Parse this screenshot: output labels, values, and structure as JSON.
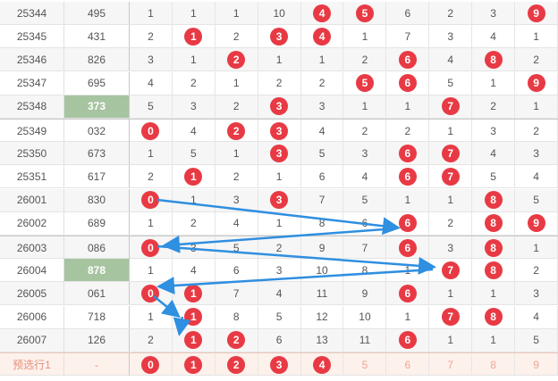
{
  "colors": {
    "ball": "#e83a44",
    "highlight_sum": "#a7c4a1",
    "arrow": "#2f8fe0",
    "pre_row_bg": "#fdf1ec",
    "pre_text": "#f0a58f"
  },
  "rows": [
    {
      "issue": "25344",
      "sum": "495",
      "cells": [
        "1",
        "1",
        "1",
        "10",
        "4",
        "5",
        "6",
        "2",
        "3",
        "9"
      ],
      "balls": [
        4,
        5,
        9
      ]
    },
    {
      "issue": "25345",
      "sum": "431",
      "cells": [
        "2",
        "1",
        "2",
        "3",
        "4",
        "1",
        "7",
        "3",
        "4",
        "1"
      ],
      "balls": [
        1,
        3,
        4
      ]
    },
    {
      "issue": "25346",
      "sum": "826",
      "cells": [
        "3",
        "1",
        "2",
        "1",
        "1",
        "2",
        "6",
        "4",
        "8",
        "2"
      ],
      "balls": [
        2,
        6,
        8
      ]
    },
    {
      "issue": "25347",
      "sum": "695",
      "cells": [
        "4",
        "2",
        "1",
        "2",
        "2",
        "5",
        "6",
        "5",
        "1",
        "9"
      ],
      "balls": [
        5,
        6,
        9
      ]
    },
    {
      "issue": "25348",
      "sum": "373",
      "cells": [
        "5",
        "3",
        "2",
        "3",
        "3",
        "1",
        "1",
        "7",
        "2",
        "1"
      ],
      "balls": [
        3,
        7
      ],
      "sum_highlight": true
    },
    {
      "issue": "25349",
      "sum": "032",
      "cells": [
        "0",
        "4",
        "2",
        "3",
        "4",
        "2",
        "2",
        "1",
        "3",
        "2"
      ],
      "balls": [
        0,
        2,
        3
      ]
    },
    {
      "issue": "25350",
      "sum": "673",
      "cells": [
        "1",
        "5",
        "1",
        "3",
        "5",
        "3",
        "6",
        "7",
        "4",
        "3"
      ],
      "balls": [
        3,
        6,
        7
      ]
    },
    {
      "issue": "25351",
      "sum": "617",
      "cells": [
        "2",
        "1",
        "2",
        "1",
        "6",
        "4",
        "6",
        "7",
        "5",
        "4"
      ],
      "balls": [
        1,
        6,
        7
      ]
    },
    {
      "issue": "26001",
      "sum": "830",
      "cells": [
        "0",
        "1",
        "3",
        "3",
        "7",
        "5",
        "1",
        "1",
        "8",
        "5"
      ],
      "balls": [
        0,
        3,
        8
      ]
    },
    {
      "issue": "26002",
      "sum": "689",
      "cells": [
        "1",
        "2",
        "4",
        "1",
        "8",
        "6",
        "6",
        "2",
        "8",
        "9"
      ],
      "balls": [
        6,
        8,
        9
      ]
    },
    {
      "issue": "26003",
      "sum": "086",
      "cells": [
        "0",
        "3",
        "5",
        "2",
        "9",
        "7",
        "6",
        "3",
        "8",
        "1"
      ],
      "balls": [
        0,
        6,
        8
      ]
    },
    {
      "issue": "26004",
      "sum": "878",
      "cells": [
        "1",
        "4",
        "6",
        "3",
        "10",
        "8",
        "1",
        "7",
        "8",
        "2"
      ],
      "balls": [
        7,
        8
      ],
      "sum_highlight": true
    },
    {
      "issue": "26005",
      "sum": "061",
      "cells": [
        "0",
        "1",
        "7",
        "4",
        "11",
        "9",
        "6",
        "1",
        "1",
        "3"
      ],
      "balls": [
        0,
        1,
        6
      ]
    },
    {
      "issue": "26006",
      "sum": "718",
      "cells": [
        "1",
        "1",
        "8",
        "5",
        "12",
        "10",
        "1",
        "7",
        "8",
        "4"
      ],
      "balls": [
        1,
        7,
        8
      ]
    },
    {
      "issue": "26007",
      "sum": "126",
      "cells": [
        "2",
        "1",
        "2",
        "6",
        "13",
        "11",
        "6",
        "1",
        "1",
        "5"
      ],
      "balls": [
        1,
        2,
        6
      ]
    }
  ],
  "preselect": {
    "label": "预选行1",
    "sum": "-",
    "cells": [
      "0",
      "1",
      "2",
      "3",
      "4",
      "5",
      "6",
      "7",
      "8",
      "9"
    ],
    "balls": [
      0,
      1,
      2,
      3,
      4
    ]
  }
}
